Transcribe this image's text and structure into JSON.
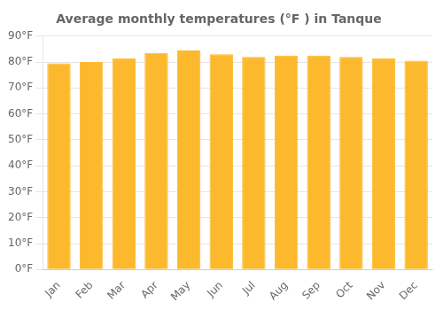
{
  "chart_data": {
    "type": "bar",
    "title": "Average monthly temperatures (°F ) in Tanque",
    "categories": [
      "Jan",
      "Feb",
      "Mar",
      "Apr",
      "May",
      "Jun",
      "Jul",
      "Aug",
      "Sep",
      "Oct",
      "Nov",
      "Dec"
    ],
    "values": [
      79.5,
      80.0,
      81.5,
      83.5,
      84.5,
      83.0,
      82.0,
      82.5,
      82.5,
      82.0,
      81.5,
      80.5
    ],
    "color": "#FDB92E",
    "ylim": [
      0,
      90
    ],
    "yticks": [
      {
        "value": 0,
        "label": "0°F"
      },
      {
        "value": 10,
        "label": "10°F"
      },
      {
        "value": 20,
        "label": "20°F"
      },
      {
        "value": 30,
        "label": "30°F"
      },
      {
        "value": 40,
        "label": "40°F"
      },
      {
        "value": 50,
        "label": "50°F"
      },
      {
        "value": 60,
        "label": "60°F"
      },
      {
        "value": 70,
        "label": "70°F"
      },
      {
        "value": 80,
        "label": "80°F"
      },
      {
        "value": 90,
        "label": "90°F"
      }
    ],
    "grid": true
  }
}
